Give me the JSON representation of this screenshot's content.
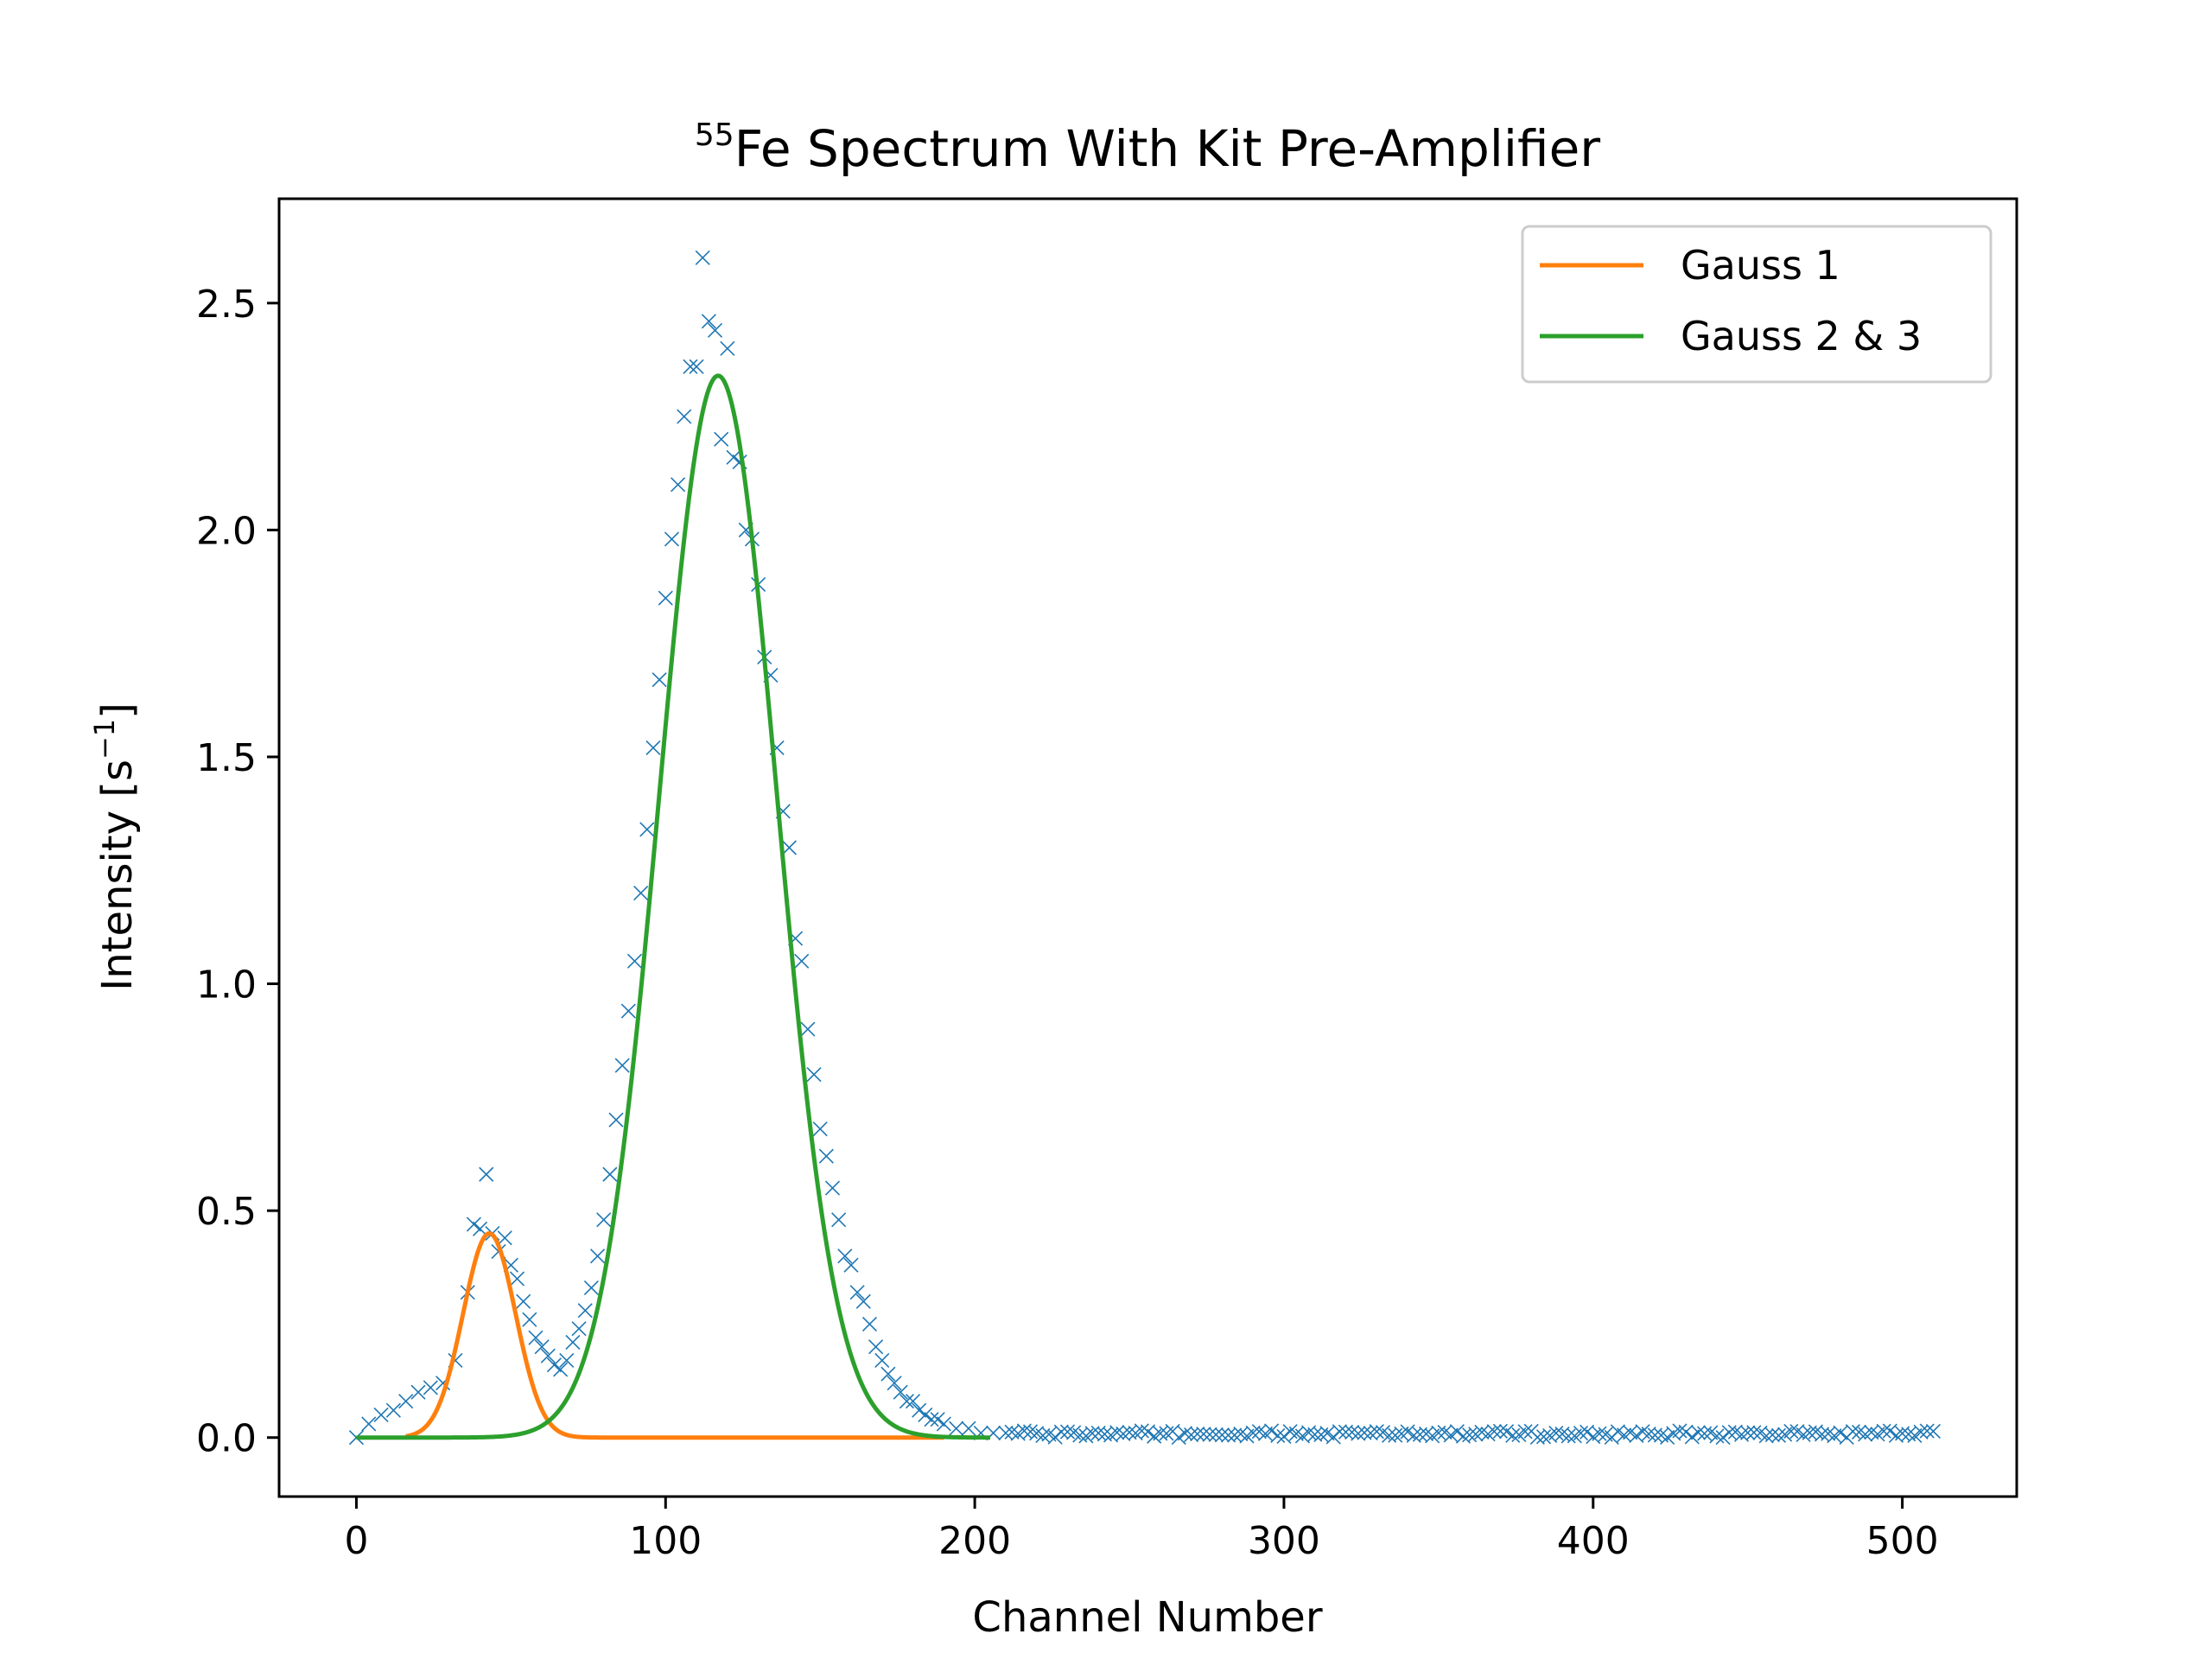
{
  "chart_data": {
    "type": "scatter",
    "title_sup": "55",
    "title": "Fe Spectrum With Kit Pre-Amplifier",
    "xlabel": "Channel Number",
    "ylabel_main": "Intensity [s",
    "ylabel_sup": "−1",
    "ylabel_end": "]",
    "xlim": [
      -25,
      537
    ],
    "ylim": [
      -0.13,
      2.73
    ],
    "x_ticks": [
      0,
      100,
      200,
      300,
      400,
      500
    ],
    "x_tick_labels": [
      "0",
      "100",
      "200",
      "300",
      "400",
      "500"
    ],
    "y_ticks": [
      0.0,
      0.5,
      1.0,
      1.5,
      2.0,
      2.5
    ],
    "y_tick_labels": [
      "0.0",
      "0.5",
      "1.0",
      "1.5",
      "2.0",
      "2.5"
    ],
    "grid": false,
    "legend_position": "top-right",
    "scatter": {
      "marker": "x",
      "color": "#1f77b4",
      "x_range": [
        0,
        511
      ],
      "points": [
        [
          0,
          0.0
        ],
        [
          4,
          0.03
        ],
        [
          8,
          0.05
        ],
        [
          12,
          0.06
        ],
        [
          16,
          0.08
        ],
        [
          20,
          0.1
        ],
        [
          24,
          0.11
        ],
        [
          28,
          0.12
        ],
        [
          32,
          0.17
        ],
        [
          36,
          0.32
        ],
        [
          38,
          0.47
        ],
        [
          40,
          0.46
        ],
        [
          42,
          0.58
        ],
        [
          44,
          0.45
        ],
        [
          46,
          0.41
        ],
        [
          48,
          0.44
        ],
        [
          50,
          0.38
        ],
        [
          52,
          0.35
        ],
        [
          54,
          0.3
        ],
        [
          56,
          0.26
        ],
        [
          58,
          0.22
        ],
        [
          60,
          0.2
        ],
        [
          62,
          0.18
        ],
        [
          64,
          0.16
        ],
        [
          66,
          0.15
        ],
        [
          68,
          0.17
        ],
        [
          70,
          0.21
        ],
        [
          72,
          0.24
        ],
        [
          74,
          0.28
        ],
        [
          76,
          0.33
        ],
        [
          78,
          0.4
        ],
        [
          80,
          0.48
        ],
        [
          82,
          0.58
        ],
        [
          84,
          0.7
        ],
        [
          86,
          0.82
        ],
        [
          88,
          0.94
        ],
        [
          90,
          1.05
        ],
        [
          92,
          1.2
        ],
        [
          94,
          1.34
        ],
        [
          96,
          1.52
        ],
        [
          98,
          1.67
        ],
        [
          100,
          1.85
        ],
        [
          102,
          1.98
        ],
        [
          104,
          2.1
        ],
        [
          106,
          2.25
        ],
        [
          108,
          2.36
        ],
        [
          110,
          2.36
        ],
        [
          112,
          2.6
        ],
        [
          114,
          2.46
        ],
        [
          116,
          2.44
        ],
        [
          118,
          2.2
        ],
        [
          120,
          2.4
        ],
        [
          122,
          2.16
        ],
        [
          124,
          2.15
        ],
        [
          126,
          2.0
        ],
        [
          128,
          1.98
        ],
        [
          130,
          1.88
        ],
        [
          132,
          1.72
        ],
        [
          134,
          1.68
        ],
        [
          136,
          1.52
        ],
        [
          138,
          1.38
        ],
        [
          140,
          1.3
        ],
        [
          142,
          1.1
        ],
        [
          144,
          1.05
        ],
        [
          146,
          0.9
        ],
        [
          148,
          0.8
        ],
        [
          150,
          0.68
        ],
        [
          152,
          0.62
        ],
        [
          154,
          0.55
        ],
        [
          156,
          0.48
        ],
        [
          158,
          0.4
        ],
        [
          160,
          0.38
        ],
        [
          162,
          0.32
        ],
        [
          164,
          0.3
        ],
        [
          166,
          0.25
        ],
        [
          168,
          0.2
        ],
        [
          170,
          0.17
        ],
        [
          172,
          0.14
        ],
        [
          174,
          0.12
        ],
        [
          176,
          0.1
        ],
        [
          178,
          0.08
        ],
        [
          180,
          0.08
        ],
        [
          182,
          0.06
        ],
        [
          184,
          0.05
        ],
        [
          186,
          0.04
        ],
        [
          188,
          0.04
        ],
        [
          190,
          0.03
        ],
        [
          194,
          0.02
        ],
        [
          198,
          0.02
        ],
        [
          202,
          0.01
        ],
        [
          206,
          0.01
        ],
        [
          210,
          0.01
        ]
      ]
    },
    "series": [
      {
        "name": "Gauss 1",
        "color": "#ff7f0e",
        "model": "gaussian",
        "amplitude": 0.45,
        "mean": 43,
        "sigma": 8.5,
        "x_range": [
          16,
          190
        ]
      },
      {
        "name": "Gauss 2 & 3",
        "color": "#2ca02c",
        "model": "gaussian",
        "amplitude": 2.34,
        "mean": 117,
        "sigma": 19,
        "x_range": [
          0,
          205
        ]
      }
    ]
  }
}
